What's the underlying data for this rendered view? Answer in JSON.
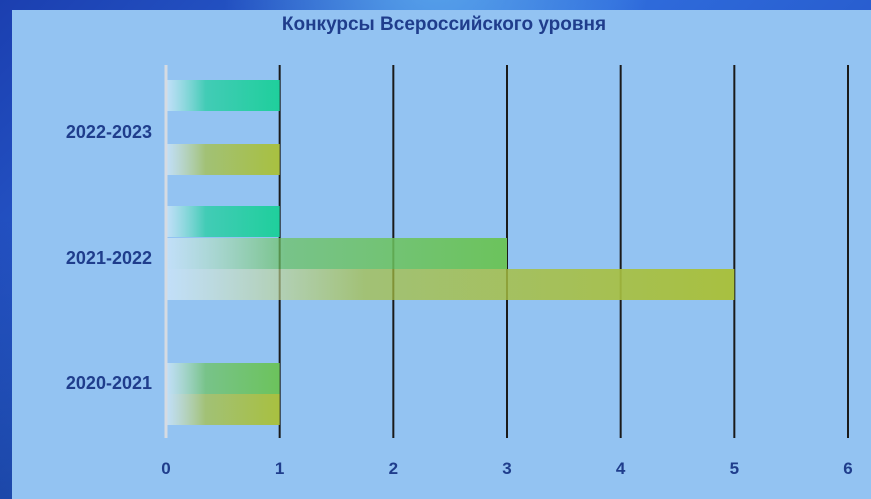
{
  "chart_data": {
    "type": "bar",
    "orientation": "horizontal",
    "title": "Конкурсы Всероссийского уровня",
    "xlabel": "",
    "ylabel": "",
    "xlim": [
      0,
      6
    ],
    "x_ticks": [
      0,
      1,
      2,
      3,
      4,
      5,
      6
    ],
    "grid": "vertical",
    "legend": "none",
    "categories": [
      "2022-2023",
      "2021-2022",
      "2020-2021"
    ],
    "bars": [
      {
        "category": "2022-2023",
        "value": 1,
        "color": "#1fcf9c"
      },
      {
        "category": "2022-2023",
        "value": 1,
        "color": "#a8c040"
      },
      {
        "category": "2021-2022",
        "value": 1,
        "color": "#1fcf9c"
      },
      {
        "category": "2021-2022",
        "value": 3,
        "color": "#6cc35c"
      },
      {
        "category": "2021-2022",
        "value": 5,
        "color": "#a8c040"
      },
      {
        "category": "2020-2021",
        "value": 1,
        "color": "#6cc35c"
      },
      {
        "category": "2020-2021",
        "value": 1,
        "color": "#a8c040"
      }
    ]
  }
}
